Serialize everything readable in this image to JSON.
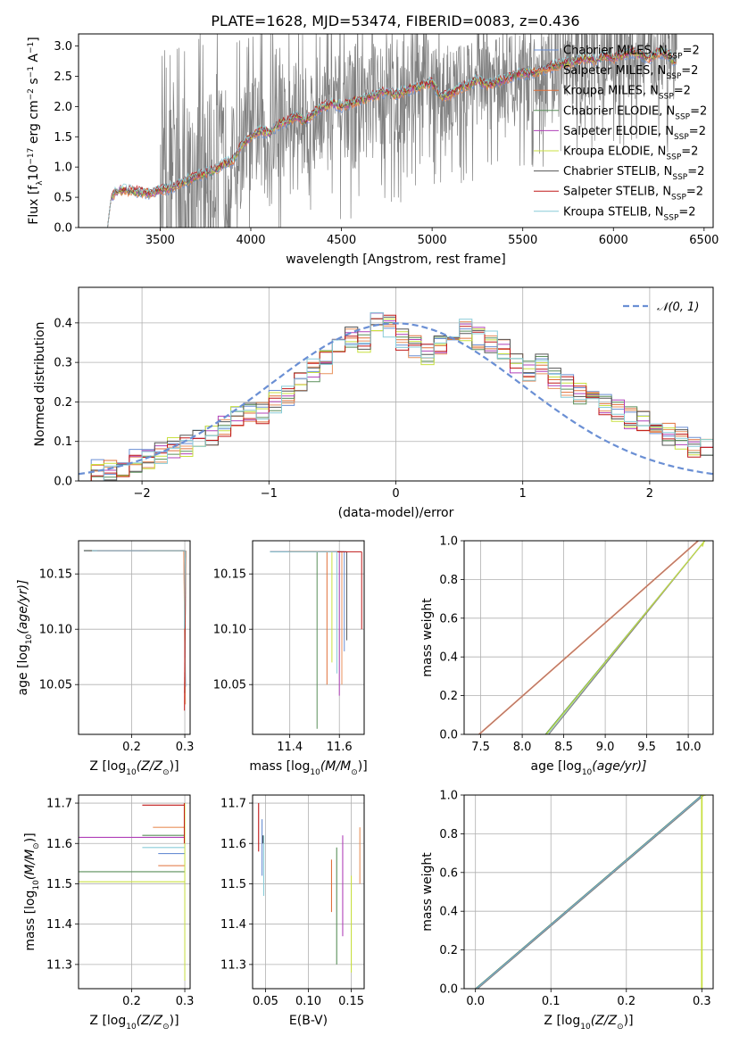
{
  "figure": {
    "title": "PLATE=1628, MJD=53474, FIBERID=0083, z=0.436"
  },
  "models": [
    {
      "label": "Chabrier MILES",
      "color": "#6a8fd4"
    },
    {
      "label": "Salpeter MILES",
      "color": "#e8915c"
    },
    {
      "label": "Kroupa MILES",
      "color": "#e0703a"
    },
    {
      "label": "Chabrier ELODIE",
      "color": "#5a8f5a"
    },
    {
      "label": "Salpeter ELODIE",
      "color": "#b040b8"
    },
    {
      "label": "Kroupa ELODIE",
      "color": "#c8e040"
    },
    {
      "label": "Chabrier STELIB",
      "color": "#555555"
    },
    {
      "label": "Salpeter STELIB",
      "color": "#c01818"
    },
    {
      "label": "Kroupa STELIB",
      "color": "#88ccd8"
    }
  ],
  "nssp_suffix": "=2",
  "chart_data": [
    {
      "id": "spectrum",
      "type": "line",
      "title": "PLATE=1628, MJD=53474, FIBERID=0083, z=0.436",
      "xlabel": "wavelength [Angstrom, rest frame]",
      "ylabel": "Flux [f",
      "ylabel_parts": [
        "Flux [f",
        "λ",
        "10",
        "−17",
        " erg cm",
        "−2",
        " s",
        "−1",
        " A",
        "−1",
        "]"
      ],
      "xlim": [
        3050,
        6550
      ],
      "ylim": [
        0,
        3.2
      ],
      "xticks": [
        3500,
        4000,
        4500,
        5000,
        5500,
        6000,
        6500
      ],
      "yticks": [
        0.0,
        0.5,
        1.0,
        1.5,
        2.0,
        2.5,
        3.0
      ],
      "xticklabels": [
        "3500",
        "4000",
        "4500",
        "5000",
        "5500",
        "6000",
        "6500"
      ],
      "yticklabels": [
        "0.0",
        "0.5",
        "1.0",
        "1.5",
        "2.0",
        "2.5",
        "3.0"
      ],
      "model_continuum": {
        "x": [
          3210,
          3230,
          3260,
          3300,
          3350,
          3400,
          3450,
          3500,
          3550,
          3600,
          3650,
          3700,
          3750,
          3800,
          3850,
          3900,
          3950,
          4000,
          4050,
          4100,
          4150,
          4200,
          4250,
          4300,
          4350,
          4400,
          4450,
          4500,
          4550,
          4600,
          4650,
          4700,
          4750,
          4800,
          4850,
          4900,
          4950,
          5000,
          5050,
          5100,
          5150,
          5200,
          5250,
          5300,
          5350,
          5400,
          5450,
          5500,
          5550,
          5600,
          5650,
          5700,
          5750,
          5800,
          5850,
          5900,
          5950,
          6000,
          6050,
          6100,
          6150,
          6200,
          6250,
          6300,
          6350
        ],
        "y": [
          0.0,
          0.5,
          0.6,
          0.62,
          0.6,
          0.58,
          0.56,
          0.62,
          0.65,
          0.72,
          0.78,
          0.85,
          0.9,
          0.95,
          1.05,
          1.1,
          1.35,
          1.5,
          1.6,
          1.55,
          1.7,
          1.75,
          1.85,
          1.75,
          1.9,
          2.0,
          2.05,
          2.0,
          2.05,
          2.1,
          2.15,
          2.2,
          2.25,
          2.2,
          2.25,
          2.3,
          2.35,
          2.4,
          2.15,
          2.2,
          2.3,
          2.35,
          2.45,
          2.35,
          2.4,
          2.45,
          2.5,
          2.55,
          2.55,
          2.6,
          2.65,
          2.7,
          2.72,
          2.75,
          2.8,
          2.75,
          2.85,
          2.8,
          2.85,
          2.9,
          2.85,
          2.8,
          2.9,
          2.85,
          2.7
        ]
      },
      "data_noise_start": 3500,
      "data_noise_end": 6350
    },
    {
      "id": "residuals",
      "type": "line",
      "xlabel": "(data-model)/error",
      "ylabel": "Normed distribution",
      "legend": [
        "𝒩(0, 1)"
      ],
      "legend_position": "top-right",
      "xlim": [
        -2.5,
        2.5
      ],
      "ylim": [
        0,
        0.49
      ],
      "xticks": [
        -2,
        -1,
        0,
        1,
        2
      ],
      "yticks": [
        0.0,
        0.1,
        0.2,
        0.3,
        0.4
      ],
      "xticklabels": [
        "−2",
        "−1",
        "0",
        "1",
        "2"
      ],
      "yticklabels": [
        "0.0",
        "0.1",
        "0.2",
        "0.3",
        "0.4"
      ],
      "grid": true,
      "normal": {
        "mean": 0,
        "sd": 1,
        "color": "#6a8fd4"
      },
      "hist_bin_width": 0.1,
      "hist_base": [
        0.02,
        0.025,
        0.03,
        0.04,
        0.05,
        0.06,
        0.07,
        0.08,
        0.09,
        0.1,
        0.12,
        0.14,
        0.16,
        0.18,
        0.17,
        0.2,
        0.22,
        0.25,
        0.28,
        0.3,
        0.33,
        0.36,
        0.35,
        0.4,
        0.39,
        0.36,
        0.34,
        0.32,
        0.35,
        0.36,
        0.38,
        0.36,
        0.35,
        0.33,
        0.3,
        0.28,
        0.3,
        0.26,
        0.24,
        0.22,
        0.2,
        0.19,
        0.18,
        0.16,
        0.15,
        0.13,
        0.12,
        0.11,
        0.09,
        0.08,
        0.06
      ]
    },
    {
      "id": "age-vs-z",
      "type": "line",
      "xlabel": "Z [log",
      "ylabel": "age  [log",
      "xlim": [
        0.1,
        0.31
      ],
      "ylim": [
        10.005,
        10.18
      ],
      "xticks": [
        0.2,
        0.3
      ],
      "yticks": [
        10.05,
        10.1,
        10.15
      ],
      "xticklabels": [
        "0.2",
        "0.3"
      ],
      "yticklabels": [
        "10.05",
        "10.10",
        "10.15"
      ]
    },
    {
      "id": "age-vs-mass",
      "type": "line",
      "xlabel": "mass [log",
      "xlim": [
        11.25,
        11.7
      ],
      "ylim": [
        10.005,
        10.18
      ],
      "xticks": [
        11.4,
        11.6
      ],
      "yticks": [
        10.05,
        10.1,
        10.15
      ],
      "xticklabels": [
        "11.4",
        "11.6"
      ],
      "yticklabels": [
        "10.05",
        "10.10",
        "10.15"
      ]
    },
    {
      "id": "mass-weight-vs-age",
      "type": "line",
      "xlabel": "age  [log",
      "ylabel": "mass weight",
      "xlim": [
        7.3,
        10.3
      ],
      "ylim": [
        0,
        1
      ],
      "xticks": [
        7.5,
        8.0,
        8.5,
        9.0,
        9.5,
        10.0
      ],
      "yticks": [
        0.0,
        0.2,
        0.4,
        0.6,
        0.8,
        1.0
      ],
      "xticklabels": [
        "7.5",
        "8.0",
        "8.5",
        "9.0",
        "9.5",
        "10.0"
      ],
      "yticklabels": [
        "0.0",
        "0.2",
        "0.4",
        "0.6",
        "0.8",
        "1.0"
      ],
      "grid": true
    },
    {
      "id": "mass-vs-z",
      "type": "line",
      "xlabel": "Z [log",
      "ylabel": "mass [log",
      "xlim": [
        0.1,
        0.31
      ],
      "ylim": [
        11.24,
        11.72
      ],
      "xticks": [
        0.2,
        0.3
      ],
      "yticks": [
        11.3,
        11.4,
        11.5,
        11.6,
        11.7
      ],
      "xticklabels": [
        "0.2",
        "0.3"
      ],
      "yticklabels": [
        "11.3",
        "11.4",
        "11.5",
        "11.6",
        "11.7"
      ]
    },
    {
      "id": "mass-vs-ebv",
      "type": "line",
      "xlabel": "E(B-V)",
      "xlim": [
        0.035,
        0.165
      ],
      "ylim": [
        11.24,
        11.72
      ],
      "xticks": [
        0.05,
        0.1,
        0.15
      ],
      "yticks": [
        11.3,
        11.4,
        11.5,
        11.6,
        11.7
      ],
      "xticklabels": [
        "0.05",
        "0.10",
        "0.15"
      ],
      "yticklabels": [
        "11.3",
        "11.4",
        "11.5",
        "11.6",
        "11.7"
      ]
    },
    {
      "id": "mass-weight-vs-z",
      "type": "line",
      "xlabel": "Z [log",
      "ylabel": "mass weight",
      "xlim": [
        -0.015,
        0.315
      ],
      "ylim": [
        0,
        1
      ],
      "xticks": [
        0.0,
        0.1,
        0.2,
        0.3
      ],
      "yticks": [
        0.0,
        0.2,
        0.4,
        0.6,
        0.8,
        1.0
      ],
      "xticklabels": [
        "0.0",
        "0.1",
        "0.2",
        "0.3"
      ],
      "yticklabels": [
        "0.0",
        "0.2",
        "0.4",
        "0.6",
        "0.8",
        "1.0"
      ],
      "grid": true
    }
  ]
}
